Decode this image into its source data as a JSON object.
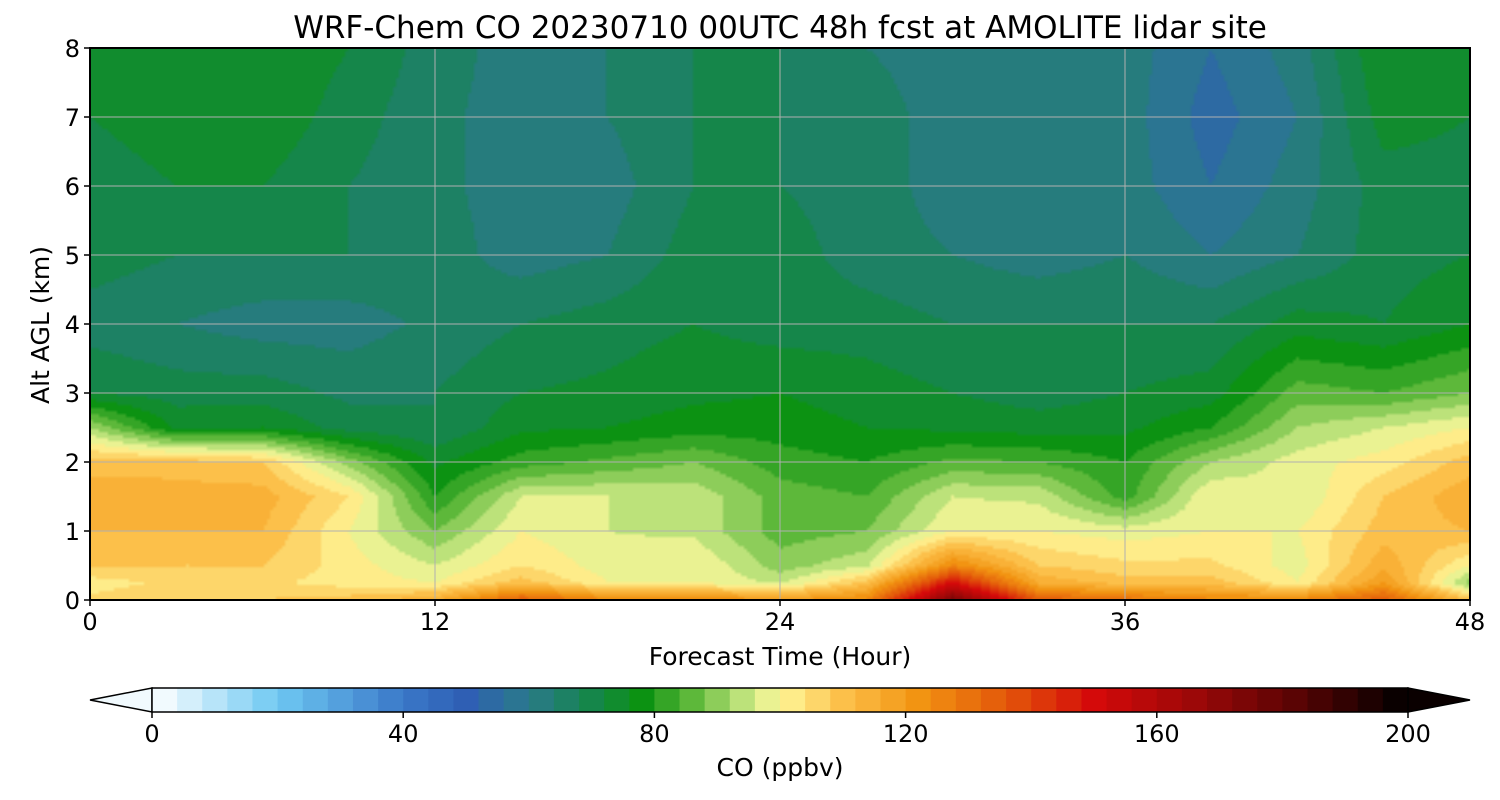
{
  "chart_data": {
    "type": "heatmap",
    "title": "WRF-Chem CO  20230710 00UTC 48h fcst at AMOLITE lidar site",
    "xlabel": "Forecast Time (Hour)",
    "ylabel": "Alt AGL (km)",
    "xlim": [
      0,
      48
    ],
    "ylim": [
      0,
      8
    ],
    "xticks": [
      0,
      12,
      24,
      36,
      48
    ],
    "yticks": [
      0,
      1,
      2,
      3,
      4,
      5,
      6,
      7,
      8
    ],
    "grid": true,
    "x": [
      0,
      3,
      6,
      9,
      12,
      15,
      18,
      21,
      24,
      27,
      30,
      33,
      36,
      39,
      42,
      45,
      48
    ],
    "y": [
      0,
      0.25,
      0.5,
      1,
      1.5,
      2,
      2.5,
      3,
      4,
      5,
      6,
      7,
      8
    ],
    "z": [
      [
        105,
        108,
        108,
        110,
        115,
        135,
        125,
        125,
        120,
        125,
        175,
        135,
        130,
        125,
        125,
        135,
        110
      ],
      [
        102,
        105,
        105,
        102,
        100,
        110,
        100,
        100,
        95,
        110,
        150,
        115,
        110,
        110,
        100,
        120,
        90
      ],
      [
        108,
        108,
        108,
        102,
        96,
        104,
        98,
        100,
        90,
        95,
        125,
        108,
        105,
        105,
        98,
        115,
        100
      ],
      [
        112,
        112,
        112,
        100,
        88,
        100,
        96,
        95,
        86,
        88,
        100,
        100,
        98,
        100,
        100,
        110,
        112
      ],
      [
        115,
        114,
        114,
        104,
        80,
        96,
        96,
        95,
        86,
        84,
        96,
        95,
        82,
        100,
        96,
        108,
        115
      ],
      [
        110,
        110,
        108,
        90,
        75,
        82,
        85,
        88,
        82,
        80,
        85,
        84,
        80,
        92,
        98,
        102,
        110
      ],
      [
        92,
        75,
        76,
        70,
        68,
        75,
        76,
        78,
        78,
        76,
        75,
        74,
        75,
        80,
        92,
        96,
        100
      ],
      [
        72,
        70,
        70,
        67,
        68,
        72,
        73,
        75,
        76,
        74,
        72,
        70,
        72,
        74,
        86,
        84,
        88
      ],
      [
        66,
        64,
        62,
        62,
        65,
        68,
        70,
        72,
        70,
        70,
        68,
        68,
        68,
        68,
        74,
        72,
        76
      ],
      [
        70,
        68,
        68,
        68,
        66,
        62,
        64,
        70,
        70,
        66,
        64,
        62,
        64,
        60,
        64,
        70,
        72
      ],
      [
        70,
        72,
        72,
        68,
        65,
        62,
        62,
        68,
        68,
        66,
        62,
        60,
        62,
        56,
        62,
        70,
        70
      ],
      [
        72,
        74,
        75,
        70,
        65,
        62,
        64,
        68,
        68,
        66,
        62,
        60,
        62,
        54,
        60,
        74,
        72
      ],
      [
        74,
        74,
        76,
        72,
        66,
        62,
        64,
        68,
        68,
        64,
        62,
        60,
        62,
        56,
        62,
        76,
        74
      ]
    ],
    "colorbar": {
      "label": "CO  (ppbv)",
      "range": [
        0,
        200
      ],
      "ticks": [
        0,
        40,
        80,
        120,
        160,
        200
      ],
      "extend": "both",
      "orientation": "horizontal"
    },
    "colormap": [
      [
        0,
        "#ffffff"
      ],
      [
        20,
        "#6ec8f2"
      ],
      [
        40,
        "#3a78c8"
      ],
      [
        50,
        "#2f5fb4"
      ],
      [
        60,
        "#2a7a8a"
      ],
      [
        70,
        "#15864a"
      ],
      [
        78,
        "#0c9212"
      ],
      [
        86,
        "#5db83a"
      ],
      [
        96,
        "#d4ec8a"
      ],
      [
        100,
        "#fff799"
      ],
      [
        110,
        "#fcc04a"
      ],
      [
        122,
        "#f29412"
      ],
      [
        135,
        "#e45c0a"
      ],
      [
        150,
        "#d40a0a"
      ],
      [
        165,
        "#a00808"
      ],
      [
        182,
        "#5a0404"
      ],
      [
        200,
        "#000000"
      ]
    ],
    "colors": {
      "grid": "#b0b0b0",
      "axes": "#000000"
    }
  }
}
